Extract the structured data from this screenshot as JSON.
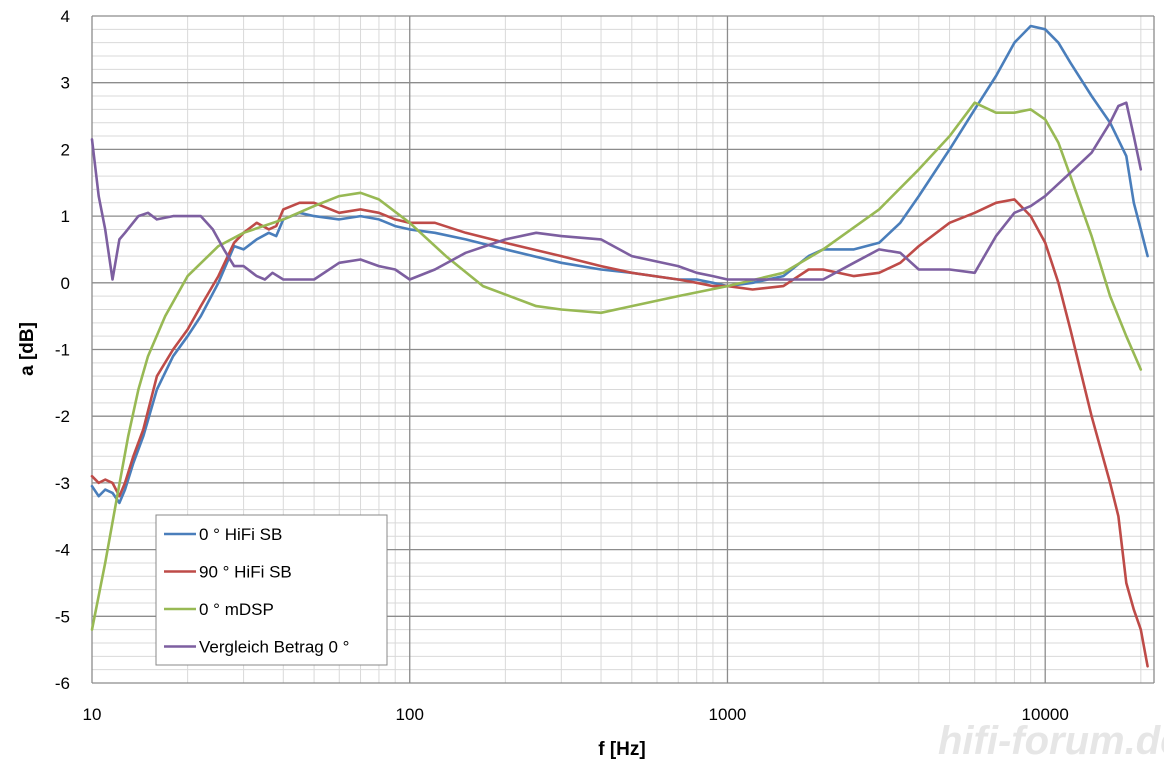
{
  "chart_data": {
    "type": "line",
    "xlabel": "f [Hz]",
    "ylabel": "a [dB]",
    "x_scale": "log",
    "xlim": [
      10,
      22000
    ],
    "ylim": [
      -6,
      4
    ],
    "x_ticks": [
      10,
      100,
      1000,
      10000
    ],
    "x_tick_labels": [
      "10",
      "100",
      "1000",
      "10000"
    ],
    "y_ticks": [
      4,
      3,
      2,
      1,
      0,
      -1,
      -2,
      -3,
      -4,
      -5,
      -6
    ],
    "y_tick_labels": [
      "4",
      "3",
      "2",
      "1",
      "0",
      "-1",
      "-2",
      "-3",
      "-4",
      "-5",
      "-6"
    ],
    "grid": true,
    "legend_position": "bottom-left",
    "watermark": "hifi-forum.de",
    "series": [
      {
        "name": "0 ° HiFi SB",
        "color": "#4a7ebb",
        "x": [
          10,
          10.5,
          11,
          11.6,
          12.2,
          12.7,
          13.5,
          14.5,
          16,
          18,
          20,
          22,
          25,
          28,
          30,
          33,
          36,
          38,
          40,
          45,
          50,
          60,
          70,
          80,
          90,
          100,
          120,
          150,
          200,
          300,
          400,
          500,
          700,
          800,
          900,
          1000,
          1200,
          1500,
          1800,
          2000,
          2500,
          3000,
          3500,
          4000,
          5000,
          6000,
          7000,
          8000,
          9000,
          10000,
          11000,
          12000,
          14000,
          16000,
          18000,
          19000,
          20000,
          21000
        ],
        "values": [
          -3.05,
          -3.2,
          -3.1,
          -3.15,
          -3.3,
          -3.1,
          -2.7,
          -2.3,
          -1.6,
          -1.1,
          -0.8,
          -0.5,
          0.0,
          0.55,
          0.5,
          0.65,
          0.75,
          0.7,
          0.95,
          1.05,
          1.0,
          0.95,
          1.0,
          0.95,
          0.85,
          0.8,
          0.75,
          0.65,
          0.5,
          0.3,
          0.2,
          0.15,
          0.05,
          0.05,
          0.0,
          -0.05,
          0.0,
          0.1,
          0.4,
          0.5,
          0.5,
          0.6,
          0.9,
          1.3,
          2.0,
          2.6,
          3.1,
          3.6,
          3.85,
          3.8,
          3.6,
          3.3,
          2.8,
          2.4,
          1.9,
          1.2,
          0.8,
          0.4
        ]
      },
      {
        "name": "90 ° HiFi SB",
        "color": "#be4b48",
        "x": [
          10,
          10.5,
          11,
          11.6,
          12.2,
          12.7,
          13.5,
          14.5,
          16,
          18,
          20,
          22,
          25,
          28,
          30,
          33,
          36,
          38,
          40,
          45,
          50,
          60,
          70,
          80,
          90,
          100,
          120,
          150,
          200,
          300,
          400,
          500,
          700,
          800,
          900,
          1000,
          1200,
          1500,
          1800,
          2000,
          2500,
          3000,
          3500,
          4000,
          5000,
          6000,
          7000,
          8000,
          9000,
          10000,
          11000,
          12000,
          14000,
          16000,
          17000,
          18000,
          19000,
          20000,
          21000
        ],
        "values": [
          -2.9,
          -3.0,
          -2.95,
          -3.0,
          -3.2,
          -3.0,
          -2.6,
          -2.2,
          -1.4,
          -1.0,
          -0.7,
          -0.35,
          0.1,
          0.6,
          0.75,
          0.9,
          0.8,
          0.85,
          1.1,
          1.2,
          1.2,
          1.05,
          1.1,
          1.05,
          0.95,
          0.9,
          0.9,
          0.75,
          0.6,
          0.4,
          0.25,
          0.15,
          0.05,
          0.0,
          -0.05,
          -0.05,
          -0.1,
          -0.05,
          0.2,
          0.2,
          0.1,
          0.15,
          0.3,
          0.55,
          0.9,
          1.05,
          1.2,
          1.25,
          1.0,
          0.6,
          0.0,
          -0.7,
          -2.0,
          -3.0,
          -3.5,
          -4.5,
          -4.9,
          -5.2,
          -5.75
        ]
      },
      {
        "name": "0 ° mDSP",
        "color": "#98b954",
        "x": [
          10,
          11,
          12,
          13,
          14,
          15,
          17,
          20,
          25,
          30,
          40,
          50,
          60,
          70,
          80,
          100,
          130,
          170,
          250,
          300,
          400,
          500,
          700,
          1000,
          1500,
          2000,
          3000,
          4000,
          5000,
          6000,
          7000,
          8000,
          9000,
          10000,
          11000,
          12000,
          14000,
          16000,
          18000,
          20000
        ],
        "values": [
          -5.2,
          -4.2,
          -3.2,
          -2.3,
          -1.6,
          -1.1,
          -0.5,
          0.1,
          0.55,
          0.75,
          0.95,
          1.15,
          1.3,
          1.35,
          1.25,
          0.9,
          0.4,
          -0.05,
          -0.35,
          -0.4,
          -0.45,
          -0.35,
          -0.2,
          -0.05,
          0.15,
          0.5,
          1.1,
          1.7,
          2.2,
          2.7,
          2.55,
          2.55,
          2.6,
          2.45,
          2.1,
          1.6,
          0.7,
          -0.2,
          -0.8,
          -1.3
        ]
      },
      {
        "name": "Vergleich Betrag 0 °",
        "color": "#7d5fa0",
        "x": [
          10,
          10.5,
          11,
          11.6,
          12.2,
          12.7,
          14,
          15,
          16,
          18,
          19,
          20,
          21,
          22,
          24,
          26,
          28,
          30,
          33,
          35,
          37,
          40,
          45,
          50,
          60,
          70,
          80,
          90,
          100,
          120,
          150,
          200,
          250,
          300,
          400,
          500,
          700,
          800,
          900,
          1000,
          1200,
          1500,
          1800,
          2000,
          2500,
          3000,
          3500,
          4000,
          5000,
          6000,
          7000,
          8000,
          9000,
          10000,
          12000,
          14000,
          16000,
          17000,
          18000,
          19000,
          20000
        ],
        "values": [
          2.15,
          1.3,
          0.8,
          0.05,
          0.65,
          0.75,
          1.0,
          1.05,
          0.95,
          1.0,
          1.0,
          1.0,
          1.0,
          1.0,
          0.8,
          0.5,
          0.25,
          0.25,
          0.1,
          0.05,
          0.15,
          0.05,
          0.05,
          0.05,
          0.3,
          0.35,
          0.25,
          0.2,
          0.05,
          0.2,
          0.45,
          0.65,
          0.75,
          0.7,
          0.65,
          0.4,
          0.25,
          0.15,
          0.1,
          0.05,
          0.05,
          0.05,
          0.05,
          0.05,
          0.3,
          0.5,
          0.45,
          0.2,
          0.2,
          0.15,
          0.7,
          1.05,
          1.15,
          1.3,
          1.65,
          1.95,
          2.4,
          2.65,
          2.7,
          2.2,
          1.7
        ]
      }
    ]
  }
}
